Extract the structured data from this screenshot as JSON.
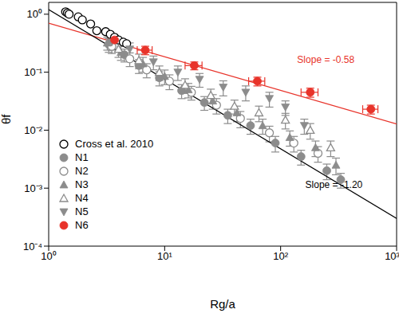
{
  "chart_data": {
    "type": "scatter",
    "x_label": "Rg/a",
    "y_label": "θf",
    "log": true,
    "grid": false,
    "legend": "lower left",
    "xlim": [
      1,
      1000
    ],
    "xticks": [
      {
        "value": 1,
        "label": "10⁰"
      },
      {
        "value": 10,
        "label": "10¹"
      },
      {
        "value": 100,
        "label": "10²"
      },
      {
        "value": 1000,
        "label": "10³"
      }
    ],
    "ylim": [
      0.0001,
      1.6
    ],
    "yticks": [
      {
        "value": 0.0001,
        "label": "10⁻⁴"
      },
      {
        "value": 0.001,
        "label": "10⁻³"
      },
      {
        "value": 0.01,
        "label": "10⁻²"
      },
      {
        "value": 0.1,
        "label": "10⁻¹"
      },
      {
        "value": 1,
        "label": "10⁰"
      }
    ],
    "series": [
      {
        "name": "Cross et al. 2010",
        "color": "#000000",
        "marker": "circle-open",
        "x": [
          1.4,
          1.45,
          1.5,
          1.8,
          1.95,
          2.3,
          2.6,
          3.1,
          3.4,
          3.7,
          4.0,
          4.4,
          4.7
        ],
        "values": [
          1.1,
          1.05,
          1.0,
          0.9,
          0.8,
          0.68,
          0.52,
          0.5,
          0.45,
          0.4,
          0.36,
          0.33,
          0.31
        ]
      },
      {
        "name": "N1",
        "color": "#8c8c8c",
        "marker": "circle",
        "x": [
          3.3,
          4.5,
          6,
          9,
          14,
          22,
          35,
          55,
          90,
          150,
          250,
          330
        ],
        "values": [
          0.3,
          0.2,
          0.13,
          0.08,
          0.048,
          0.03,
          0.018,
          0.012,
          0.006,
          0.0035,
          0.002,
          0.0014
        ],
        "yerr": [
          0.08,
          0.05,
          0.035,
          0.022,
          0.013,
          0.008,
          0.005,
          0.0035,
          0.0018,
          0.001,
          0.0006,
          0.0004
        ]
      },
      {
        "name": "N2",
        "color": "#8c8c8c",
        "marker": "circle-open",
        "x": [
          3.5,
          5,
          7,
          11,
          17,
          28,
          45,
          80,
          130,
          210
        ],
        "values": [
          0.28,
          0.17,
          0.11,
          0.07,
          0.045,
          0.027,
          0.016,
          0.009,
          0.006,
          0.004
        ],
        "yerr": [
          0.07,
          0.045,
          0.03,
          0.02,
          0.012,
          0.008,
          0.005,
          0.0027,
          0.0018,
          0.0012
        ]
      },
      {
        "name": "N3",
        "color": "#8c8c8c",
        "marker": "triangle",
        "x": [
          3.2,
          4.2,
          6.5,
          10,
          16,
          26,
          42,
          70,
          120,
          200,
          300
        ],
        "values": [
          0.32,
          0.22,
          0.14,
          0.085,
          0.05,
          0.032,
          0.02,
          0.012,
          0.0075,
          0.005,
          0.0025
        ],
        "yerr": [
          0.08,
          0.06,
          0.04,
          0.024,
          0.014,
          0.009,
          0.006,
          0.0035,
          0.0022,
          0.0015,
          0.0008
        ]
      },
      {
        "name": "N4",
        "color": "#8c8c8c",
        "marker": "triangle-open",
        "x": [
          4,
          6,
          9,
          15,
          25,
          40,
          65,
          110,
          180,
          270
        ],
        "values": [
          0.25,
          0.16,
          0.1,
          0.06,
          0.04,
          0.026,
          0.02,
          0.015,
          0.01,
          0.005
        ],
        "yerr": [
          0.07,
          0.045,
          0.028,
          0.017,
          0.011,
          0.007,
          0.006,
          0.0045,
          0.003,
          0.0015
        ]
      },
      {
        "name": "N5",
        "color": "#8c8c8c",
        "marker": "triangle-down",
        "x": [
          3.5,
          5,
          8,
          13,
          20,
          32,
          50,
          80,
          110,
          160
        ],
        "values": [
          0.33,
          0.25,
          0.15,
          0.1,
          0.075,
          0.055,
          0.045,
          0.035,
          0.025,
          0.012
        ],
        "yerr": [
          0.09,
          0.07,
          0.04,
          0.028,
          0.02,
          0.016,
          0.013,
          0.01,
          0.007,
          0.0035
        ]
      },
      {
        "name": "N6",
        "color": "#e8332a",
        "marker": "circle",
        "x": [
          3.7,
          6.8,
          18,
          63,
          180,
          600
        ],
        "values": [
          0.36,
          0.24,
          0.13,
          0.07,
          0.045,
          0.023
        ],
        "yerr": [
          0.04,
          0.04,
          0.02,
          0.012,
          0.008,
          0.004
        ],
        "xerr": [
          0.4,
          1,
          3,
          10,
          30,
          90
        ]
      }
    ],
    "fits": [
      {
        "color": "#e8332a",
        "line_style": "solid",
        "x": [
          1,
          1000
        ],
        "values": [
          0.7,
          0.0128
        ]
      },
      {
        "color": "#000000",
        "line_style": "solid",
        "x": [
          1,
          1000
        ],
        "values": [
          1.2,
          0.0003
        ]
      }
    ],
    "annotations": [
      {
        "text": "Slope = -0.58",
        "color": "#e8332a",
        "x": 245,
        "y": 0.16
      },
      {
        "text": "Slope = -1.20",
        "color": "#000000",
        "x": 288,
        "y": 0.0011
      }
    ]
  }
}
